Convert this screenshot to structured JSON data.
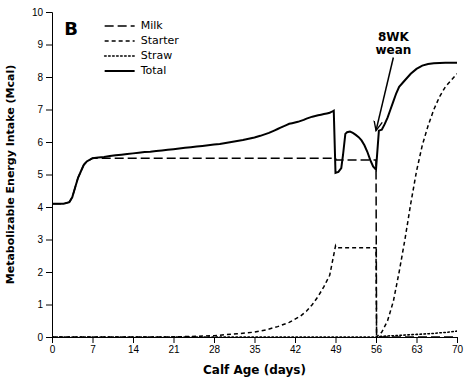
{
  "chart_data": {
    "type": "line",
    "title": "B",
    "x_label": "Calf Age (days)",
    "y_label": "Metabolizable Energy Intake (Mcal)",
    "xlim": [
      0,
      70
    ],
    "ylim": [
      0,
      10
    ],
    "xticks": [
      0,
      7,
      14,
      21,
      28,
      35,
      42,
      49,
      56,
      63,
      70
    ],
    "yticks": [
      0,
      1,
      2,
      3,
      4,
      5,
      6,
      7,
      8,
      9,
      10
    ],
    "grid": false,
    "legend": "upper left",
    "annotations": [
      {
        "text": "8WK\nwean",
        "xy": [
          56,
          6.35
        ],
        "xytext": [
          59,
          8.6
        ]
      }
    ],
    "series": [
      {
        "name": "Milk",
        "color": "#000000",
        "line_style": "longdash",
        "x": [
          0,
          1,
          2,
          3,
          3.5,
          4,
          4.5,
          5,
          5.5,
          6,
          6.5,
          7,
          8,
          9,
          10,
          14,
          21,
          28,
          35,
          42,
          49,
          49.1,
          56,
          56.1,
          57,
          58,
          59,
          60,
          61,
          62,
          63,
          64,
          65,
          66,
          67,
          68,
          69,
          70
        ],
        "values": [
          4.1,
          4.1,
          4.1,
          4.15,
          4.3,
          4.6,
          4.9,
          5.1,
          5.3,
          5.4,
          5.45,
          5.5,
          5.5,
          5.5,
          5.5,
          5.5,
          5.5,
          5.5,
          5.5,
          5.5,
          5.5,
          5.45,
          5.45,
          0.0,
          0.0,
          0.0,
          0.0,
          0.0,
          0.0,
          0.0,
          0.0,
          0.0,
          0.0,
          0.0,
          0.0,
          0.0,
          0.0,
          0.0
        ]
      },
      {
        "name": "Starter",
        "color": "#000000",
        "line_style": "dash",
        "x": [
          0,
          10,
          20,
          25,
          28,
          30,
          32,
          35,
          37,
          39,
          41,
          43,
          44,
          45,
          46,
          47,
          48,
          49,
          49.1,
          56,
          56.1,
          57,
          58,
          59,
          60,
          61,
          62,
          63,
          64,
          65,
          66,
          67,
          68,
          69,
          70
        ],
        "values": [
          0.0,
          0.0,
          0.0,
          0.02,
          0.04,
          0.07,
          0.1,
          0.15,
          0.22,
          0.32,
          0.45,
          0.65,
          0.8,
          1.0,
          1.25,
          1.55,
          1.9,
          2.8,
          2.75,
          2.75,
          0.0,
          0.15,
          0.5,
          1.1,
          2.0,
          3.0,
          4.1,
          5.1,
          5.9,
          6.5,
          7.0,
          7.4,
          7.7,
          7.9,
          8.1
        ]
      },
      {
        "name": "Straw",
        "color": "#000000",
        "line_style": "dot",
        "x": [
          0,
          7,
          14,
          21,
          28,
          35,
          42,
          49,
          56,
          57,
          58,
          59,
          60,
          61,
          62,
          63,
          64,
          65,
          66,
          67,
          68,
          69,
          70
        ],
        "values": [
          0.0,
          0.0,
          0.0,
          0.0,
          0.0,
          0.0,
          0.0,
          0.0,
          0.0,
          0.02,
          0.03,
          0.04,
          0.05,
          0.06,
          0.07,
          0.08,
          0.09,
          0.1,
          0.11,
          0.13,
          0.14,
          0.16,
          0.18
        ]
      },
      {
        "name": "Total",
        "color": "#000000",
        "line_style": "solid",
        "x": [
          0,
          1,
          2,
          3,
          3.5,
          4,
          4.5,
          5,
          5.5,
          6,
          6.5,
          7,
          8,
          9,
          10,
          11,
          12,
          13,
          14,
          15,
          16,
          17,
          18,
          19,
          20,
          21,
          22,
          23,
          24,
          25,
          26,
          27,
          28,
          29,
          30,
          31,
          32,
          33,
          34,
          35,
          36,
          37,
          37.5,
          38,
          38.5,
          39,
          39.5,
          40,
          40.5,
          41,
          41.5,
          42,
          42.5,
          43,
          43.5,
          44,
          44.5,
          45,
          45.5,
          46,
          46.5,
          47,
          47.5,
          48,
          48.2,
          48.5,
          48.7,
          49,
          49.5,
          50,
          50.3,
          50.7,
          51,
          51.5,
          52,
          52.5,
          53,
          53.5,
          54,
          54.5,
          55,
          55.5,
          56,
          56.5,
          57,
          57.5,
          58,
          58.5,
          59,
          59.5,
          60,
          61,
          62,
          63,
          64,
          65,
          66,
          67,
          68,
          69,
          70
        ],
        "values": [
          4.1,
          4.1,
          4.1,
          4.15,
          4.3,
          4.6,
          4.9,
          5.1,
          5.3,
          5.4,
          5.45,
          5.5,
          5.52,
          5.54,
          5.57,
          5.59,
          5.61,
          5.63,
          5.65,
          5.67,
          5.69,
          5.7,
          5.72,
          5.74,
          5.76,
          5.78,
          5.8,
          5.82,
          5.84,
          5.86,
          5.88,
          5.9,
          5.92,
          5.94,
          5.97,
          6.0,
          6.03,
          6.06,
          6.1,
          6.14,
          6.19,
          6.25,
          6.28,
          6.32,
          6.36,
          6.4,
          6.44,
          6.48,
          6.52,
          6.56,
          6.58,
          6.6,
          6.62,
          6.65,
          6.68,
          6.72,
          6.75,
          6.78,
          6.8,
          6.82,
          6.84,
          6.86,
          6.88,
          6.9,
          6.92,
          6.94,
          6.96,
          5.05,
          5.08,
          5.2,
          5.6,
          6.25,
          6.3,
          6.32,
          6.28,
          6.22,
          6.15,
          6.05,
          5.9,
          5.7,
          5.45,
          5.25,
          5.15,
          6.35,
          6.38,
          6.55,
          6.75,
          7.0,
          7.25,
          7.5,
          7.7,
          7.9,
          8.1,
          8.25,
          8.35,
          8.4,
          8.42,
          8.43,
          8.44,
          8.44,
          8.44
        ]
      }
    ]
  }
}
